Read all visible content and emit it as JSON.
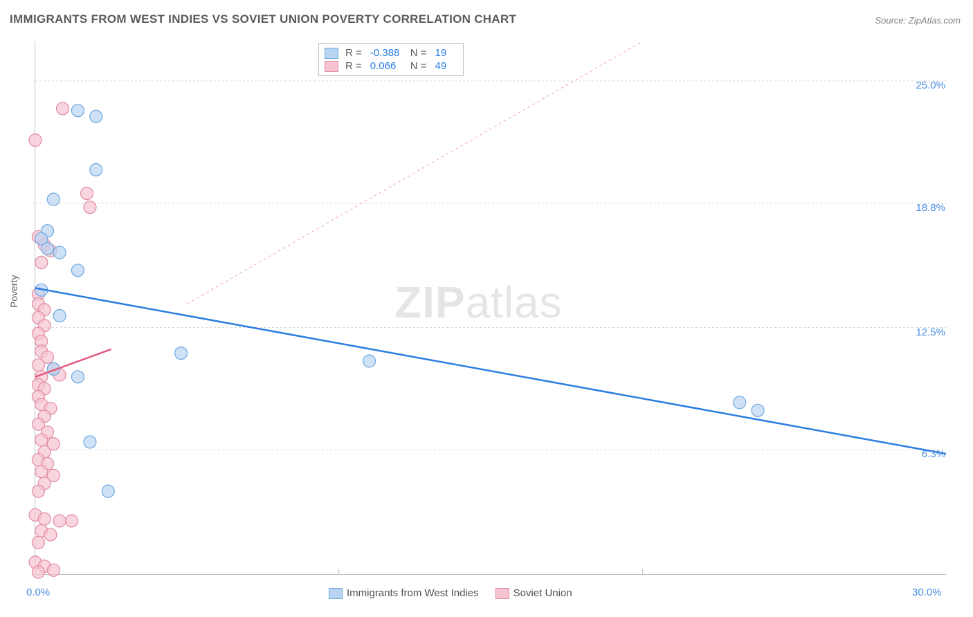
{
  "title": "IMMIGRANTS FROM WEST INDIES VS SOVIET UNION POVERTY CORRELATION CHART",
  "source": "Source: ZipAtlas.com",
  "ylabel": "Poverty",
  "watermark_bold": "ZIP",
  "watermark_rest": "atlas",
  "chart": {
    "type": "scatter",
    "xlim": [
      0,
      30
    ],
    "ylim": [
      0,
      27
    ],
    "x_ticks": [
      0,
      30
    ],
    "x_tick_labels": [
      "0.0%",
      "30.0%"
    ],
    "x_minor_ticks": [
      10,
      20
    ],
    "y_ticks": [
      6.3,
      12.5,
      18.8,
      25.0
    ],
    "y_tick_labels": [
      "6.3%",
      "12.5%",
      "18.8%",
      "25.0%"
    ],
    "grid_color": "#d8d8d8",
    "axis_color": "#bdbdbd",
    "background": "#ffffff",
    "series": [
      {
        "name": "Immigrants from West Indies",
        "color_fill": "#b9d4f1",
        "color_stroke": "#6ea8e0",
        "marker_radius": 9,
        "R": "-0.388",
        "N": "19",
        "trend": {
          "x1": 0,
          "y1": 14.5,
          "x2": 30,
          "y2": 6.1,
          "stroke": "#2a7de1",
          "width": 2.5,
          "dash": "none"
        },
        "trend_ext": {
          "x1": 5,
          "y1": 13.7,
          "x2": 20,
          "y2": 27,
          "stroke": "#f2a6b8",
          "width": 1,
          "dash": "4 4"
        },
        "points": [
          [
            1.4,
            23.5
          ],
          [
            2.0,
            23.2
          ],
          [
            0.6,
            19.0
          ],
          [
            2.0,
            20.5
          ],
          [
            0.4,
            17.4
          ],
          [
            0.2,
            17.0
          ],
          [
            0.4,
            16.5
          ],
          [
            0.8,
            16.3
          ],
          [
            1.4,
            15.4
          ],
          [
            0.2,
            14.4
          ],
          [
            0.8,
            13.1
          ],
          [
            0.6,
            10.4
          ],
          [
            1.4,
            10.0
          ],
          [
            4.8,
            11.2
          ],
          [
            11.0,
            10.8
          ],
          [
            1.8,
            6.7
          ],
          [
            2.4,
            4.2
          ],
          [
            23.2,
            8.7
          ],
          [
            23.8,
            8.3
          ]
        ]
      },
      {
        "name": "Soviet Union",
        "color_fill": "#f6c4d1",
        "color_stroke": "#e08aa2",
        "marker_radius": 9,
        "R": "0.066",
        "N": "49",
        "trend": {
          "x1": 0,
          "y1": 10.0,
          "x2": 2.5,
          "y2": 11.4,
          "stroke": "#e35a7e",
          "width": 2.5,
          "dash": "none"
        },
        "points": [
          [
            0.9,
            23.6
          ],
          [
            0.0,
            22.0
          ],
          [
            1.7,
            19.3
          ],
          [
            1.8,
            18.6
          ],
          [
            0.1,
            17.1
          ],
          [
            0.3,
            16.7
          ],
          [
            0.5,
            16.4
          ],
          [
            0.2,
            15.8
          ],
          [
            0.1,
            14.2
          ],
          [
            0.1,
            13.7
          ],
          [
            0.3,
            13.4
          ],
          [
            0.1,
            13.0
          ],
          [
            0.3,
            12.6
          ],
          [
            0.1,
            12.2
          ],
          [
            0.2,
            11.8
          ],
          [
            0.2,
            11.3
          ],
          [
            0.4,
            11.0
          ],
          [
            0.1,
            10.6
          ],
          [
            0.6,
            10.4
          ],
          [
            0.2,
            10.0
          ],
          [
            0.8,
            10.1
          ],
          [
            0.1,
            9.6
          ],
          [
            0.3,
            9.4
          ],
          [
            0.1,
            9.0
          ],
          [
            0.2,
            8.6
          ],
          [
            0.5,
            8.4
          ],
          [
            0.3,
            8.0
          ],
          [
            0.1,
            7.6
          ],
          [
            0.4,
            7.2
          ],
          [
            0.2,
            6.8
          ],
          [
            0.6,
            6.6
          ],
          [
            0.3,
            6.2
          ],
          [
            0.1,
            5.8
          ],
          [
            0.4,
            5.6
          ],
          [
            0.2,
            5.2
          ],
          [
            0.6,
            5.0
          ],
          [
            0.3,
            4.6
          ],
          [
            0.1,
            4.2
          ],
          [
            0.0,
            3.0
          ],
          [
            0.3,
            2.8
          ],
          [
            0.8,
            2.7
          ],
          [
            1.2,
            2.7
          ],
          [
            0.2,
            2.2
          ],
          [
            0.5,
            2.0
          ],
          [
            0.1,
            1.6
          ],
          [
            0.0,
            0.6
          ],
          [
            0.3,
            0.4
          ],
          [
            0.6,
            0.2
          ],
          [
            0.1,
            0.1
          ]
        ]
      }
    ]
  },
  "legend_top": {
    "rows": [
      {
        "swatch_fill": "#b9d4f1",
        "swatch_stroke": "#6ea8e0",
        "r_label": "R =",
        "r_val": "-0.388",
        "n_label": "N =",
        "n_val": "19"
      },
      {
        "swatch_fill": "#f6c4d1",
        "swatch_stroke": "#e08aa2",
        "r_label": "R =",
        "r_val": "0.066",
        "n_label": "N =",
        "n_val": "49"
      }
    ]
  },
  "legend_bottom": [
    {
      "swatch_fill": "#b9d4f1",
      "swatch_stroke": "#6ea8e0",
      "label": "Immigrants from West Indies"
    },
    {
      "swatch_fill": "#f6c4d1",
      "swatch_stroke": "#e08aa2",
      "label": "Soviet Union"
    }
  ]
}
